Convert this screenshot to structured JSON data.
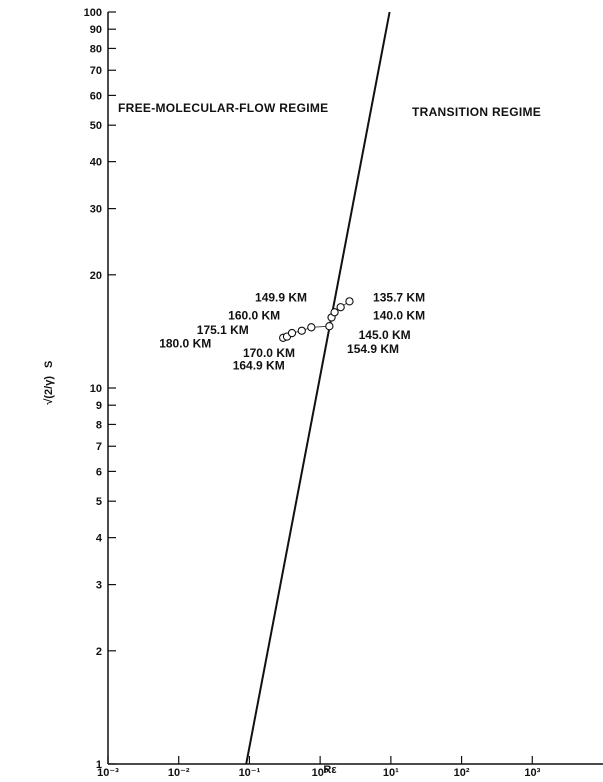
{
  "chart_data": {
    "type": "scatter",
    "title": "",
    "xlabel": "Rε",
    "ylabel": "S",
    "ylabel_prefix": "√(2/γ)",
    "x_scale": "log",
    "y_scale": "log",
    "xlim": [
      0.001,
      10000
    ],
    "ylim": [
      1,
      100
    ],
    "grid": false,
    "legend": "none",
    "x_tick_values": [
      0.001,
      0.01,
      0.1,
      1,
      10,
      100,
      1000
    ],
    "x_tick_labels": [
      "10⁻³",
      "10⁻²",
      "10⁻¹",
      "10⁰",
      "10¹",
      "10²",
      "10³"
    ],
    "y_tick_values": [
      1,
      2,
      3,
      4,
      5,
      6,
      7,
      8,
      9,
      10,
      20,
      30,
      40,
      50,
      60,
      70,
      80,
      90,
      100
    ],
    "y_tick_labels": [
      "1",
      "2",
      "3",
      "4",
      "5",
      "6",
      "7",
      "8",
      "9",
      "10",
      "20",
      "30",
      "40",
      "50",
      "60",
      "70",
      "80",
      "90",
      "100"
    ],
    "regions": [
      {
        "label": "FREE-MOLECULAR-FLOW REGIME",
        "side": "left"
      },
      {
        "label": "TRANSITION REGIME",
        "side": "right"
      }
    ],
    "boundary_line": {
      "x": [
        0.09,
        9.6
      ],
      "y": [
        1,
        100
      ]
    },
    "series": [
      {
        "values": [
          {
            "x": 0.3,
            "y": 13.6,
            "label": "180.0 KM"
          },
          {
            "x": 0.34,
            "y": 13.7,
            "label": "175.1 KM"
          },
          {
            "x": 0.4,
            "y": 14.0,
            "label": "170.0 KM"
          },
          {
            "x": 0.55,
            "y": 14.2,
            "label": "164.9 KM"
          },
          {
            "x": 0.75,
            "y": 14.5,
            "label": "160.0 KM"
          },
          {
            "x": 1.35,
            "y": 14.6,
            "label": "154.9 KM"
          },
          {
            "x": 1.45,
            "y": 15.4,
            "label": "149.9 KM"
          },
          {
            "x": 1.6,
            "y": 15.9,
            "label": "145.0 KM"
          },
          {
            "x": 1.95,
            "y": 16.4,
            "label": "140.0 KM"
          },
          {
            "x": 2.6,
            "y": 17.0,
            "label": "135.7 KM"
          }
        ]
      }
    ],
    "annotations": [
      {
        "text": "135.7 KM",
        "x": 5.6,
        "y": 17.0,
        "anchor": "start"
      },
      {
        "text": "149.9 KM",
        "x": 0.12,
        "y": 17.0,
        "anchor": "start"
      },
      {
        "text": "140.0 KM",
        "x": 5.6,
        "y": 15.2,
        "anchor": "start"
      },
      {
        "text": "160.0 KM",
        "x": 0.05,
        "y": 15.2,
        "anchor": "start"
      },
      {
        "text": "175.1 KM",
        "x": 0.018,
        "y": 13.9,
        "anchor": "start"
      },
      {
        "text": "145.0 KM",
        "x": 3.5,
        "y": 13.5,
        "anchor": "start"
      },
      {
        "text": "180.0 KM",
        "x": 0.0053,
        "y": 12.8,
        "anchor": "start"
      },
      {
        "text": "154.9 KM",
        "x": 2.4,
        "y": 12.4,
        "anchor": "start"
      },
      {
        "text": "170.0 KM",
        "x": 0.081,
        "y": 12.1,
        "anchor": "start"
      },
      {
        "text": "164.9 KM",
        "x": 0.058,
        "y": 11.2,
        "anchor": "start"
      }
    ]
  }
}
